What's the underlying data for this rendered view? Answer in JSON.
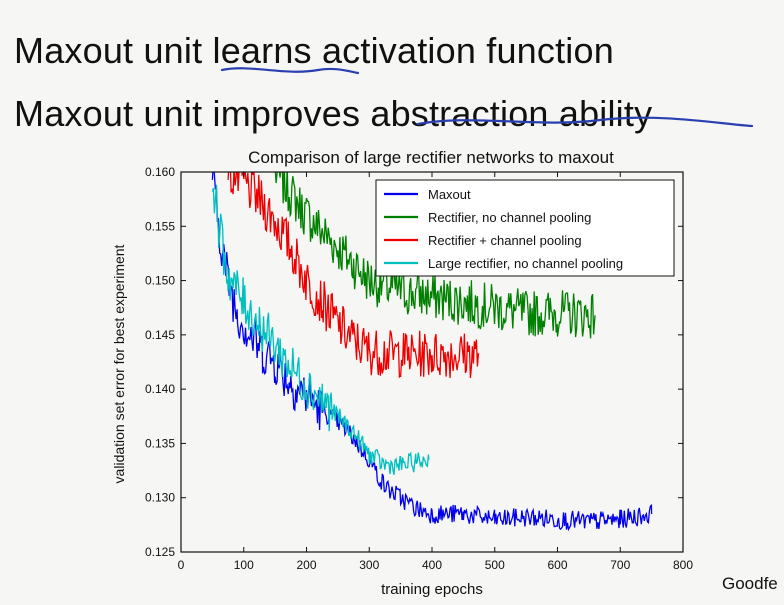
{
  "slide": {
    "line1": "Maxout unit learns activation function",
    "line2": "Maxout unit improves abstraction ability",
    "credit": "Goodfe",
    "annotation_color": "#2a3fb0"
  },
  "chart_data": {
    "type": "line",
    "title": "Comparison of large rectifier networks to maxout",
    "xlabel": "training epochs",
    "ylabel": "validation set error for best experiment",
    "xlim": [
      0,
      800
    ],
    "ylim": [
      0.125,
      0.16
    ],
    "xticks": [
      0,
      100,
      200,
      300,
      400,
      500,
      600,
      700,
      800
    ],
    "yticks": [
      0.125,
      0.13,
      0.135,
      0.14,
      0.145,
      0.15,
      0.155,
      0.16
    ],
    "legend_position": "top-right",
    "grid": false,
    "series": [
      {
        "name": "Maxout",
        "color": "#0000ee",
        "x": [
          50,
          60,
          75,
          90,
          110,
          130,
          150,
          175,
          200,
          225,
          250,
          275,
          300,
          325,
          350,
          375,
          400,
          450,
          500,
          550,
          600,
          650,
          700,
          750
        ],
        "y": [
          0.16,
          0.155,
          0.15,
          0.147,
          0.145,
          0.1435,
          0.1425,
          0.1405,
          0.1395,
          0.138,
          0.137,
          0.1355,
          0.1335,
          0.131,
          0.13,
          0.129,
          0.1285,
          0.1285,
          0.128,
          0.1282,
          0.128,
          0.1278,
          0.128,
          0.1285
        ]
      },
      {
        "name": "Rectifier, no channel pooling",
        "color": "#008000",
        "x": [
          150,
          175,
          200,
          225,
          250,
          275,
          300,
          350,
          400,
          450,
          500,
          550,
          600,
          660
        ],
        "y": [
          0.16,
          0.158,
          0.156,
          0.1545,
          0.153,
          0.1515,
          0.15,
          0.149,
          0.1485,
          0.148,
          0.1475,
          0.147,
          0.147,
          0.1468
        ]
      },
      {
        "name": "Rectifier + channel pooling",
        "color": "#ee0000",
        "x": [
          75,
          100,
          125,
          150,
          175,
          200,
          225,
          250,
          275,
          300,
          350,
          400,
          450,
          475
        ],
        "y": [
          0.16,
          0.159,
          0.1575,
          0.1555,
          0.153,
          0.15,
          0.148,
          0.146,
          0.1445,
          0.1435,
          0.1432,
          0.1432,
          0.1432,
          0.1432
        ]
      },
      {
        "name": "Large rectifier, no channel pooling",
        "color": "#00bfbf",
        "x": [
          50,
          60,
          75,
          100,
          125,
          150,
          175,
          200,
          225,
          250,
          275,
          300,
          325,
          350,
          375,
          395
        ],
        "y": [
          0.16,
          0.155,
          0.1505,
          0.148,
          0.146,
          0.144,
          0.142,
          0.1405,
          0.139,
          0.1375,
          0.136,
          0.134,
          0.133,
          0.133,
          0.1333,
          0.1335
        ]
      }
    ]
  }
}
